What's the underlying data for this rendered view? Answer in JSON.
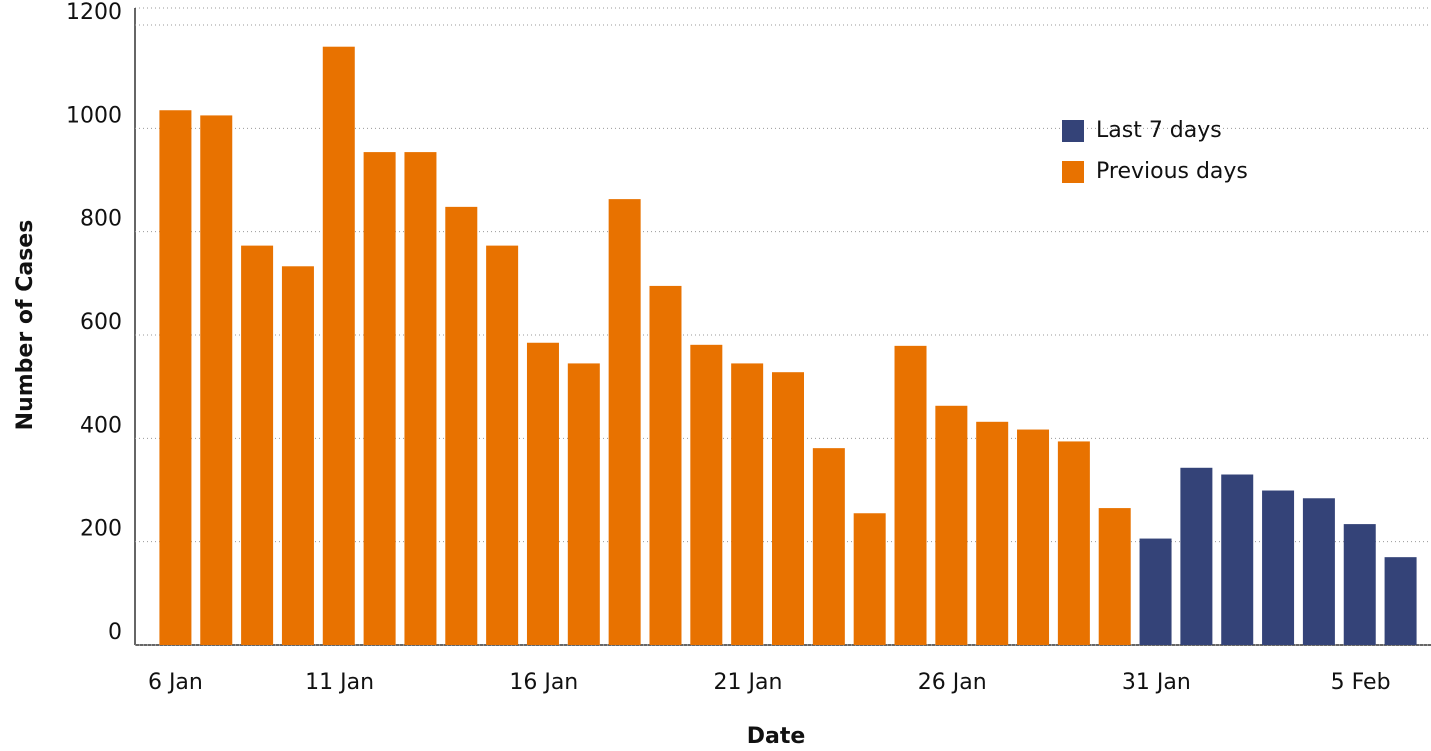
{
  "chart_data": {
    "type": "bar",
    "x_label": "Date",
    "y_label": "Number of Cases",
    "categories": [
      "6 Jan",
      null,
      null,
      null,
      null,
      "11 Jan",
      null,
      null,
      null,
      null,
      "16 Jan",
      null,
      null,
      null,
      null,
      "21 Jan",
      null,
      null,
      null,
      null,
      "26 Jan",
      null,
      null,
      null,
      null,
      "31 Jan",
      null,
      null,
      null,
      null,
      "5 Feb"
    ],
    "series": [
      {
        "name": "Last 7 days",
        "color": "#344378",
        "values": [
          null,
          null,
          null,
          null,
          null,
          null,
          null,
          null,
          null,
          null,
          null,
          null,
          null,
          null,
          null,
          null,
          null,
          null,
          null,
          null,
          null,
          null,
          null,
          null,
          206,
          343,
          330,
          299,
          284,
          234,
          170
        ]
      },
      {
        "name": "Previous days",
        "color": "#e87200",
        "values": [
          1035,
          1025,
          773,
          733,
          1158,
          954,
          954,
          848,
          773,
          585,
          545,
          863,
          695,
          581,
          545,
          528,
          381,
          255,
          579,
          463,
          432,
          417,
          394,
          265,
          null,
          null,
          null,
          null,
          null,
          null,
          null
        ]
      }
    ],
    "ylim": [
      0,
      1200
    ],
    "yticks": [
      0,
      200,
      400,
      600,
      800,
      1000,
      1200
    ],
    "grid": true
  }
}
